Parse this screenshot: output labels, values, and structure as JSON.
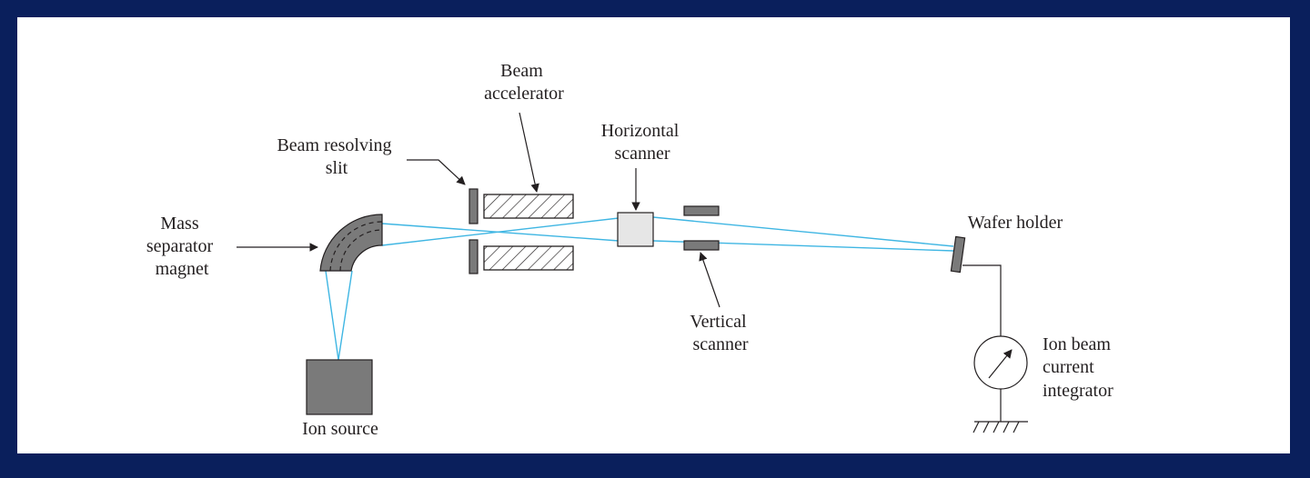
{
  "colors": {
    "frame": "#0a1f5c",
    "panel": "#ffffff",
    "beam": "#3fb6e3",
    "ink": "#231f20",
    "component_dark": "#7a7a7a",
    "component_light": "#e6e6e6"
  },
  "labels": {
    "beam_accelerator": [
      "Beam",
      "accelerator"
    ],
    "beam_resolving_slit": [
      "Beam resolving",
      "slit"
    ],
    "horizontal_scanner": [
      "Horizontal",
      "scanner"
    ],
    "mass_separator_magnet": [
      "Mass",
      "separator",
      "magnet"
    ],
    "wafer_holder": [
      "Wafer holder"
    ],
    "vertical_scanner": [
      "Vertical",
      "scanner"
    ],
    "ion_source": [
      "Ion source"
    ],
    "ion_beam_current_integrator": [
      "Ion beam",
      "current",
      "integrator"
    ]
  }
}
